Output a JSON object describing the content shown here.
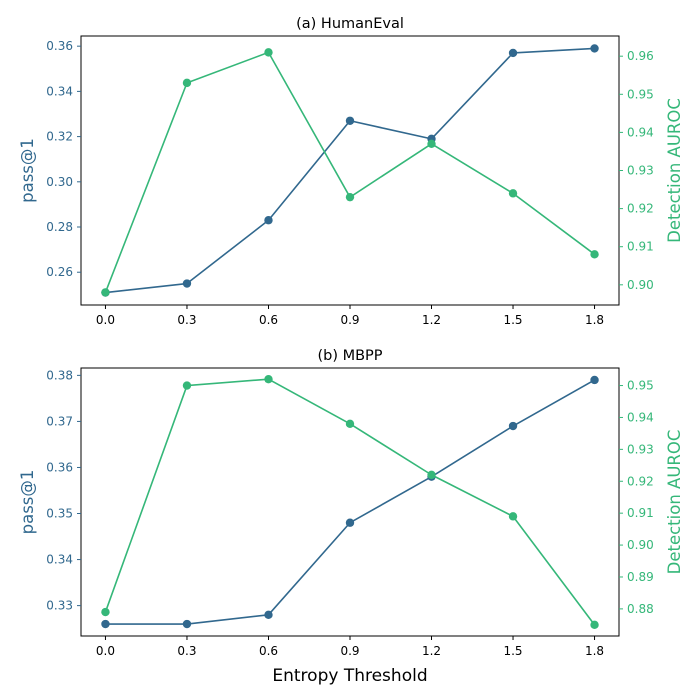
{
  "colors": {
    "pass": "#31688e",
    "auroc": "#35b779",
    "axis": "#000000"
  },
  "chart_data": [
    {
      "type": "line",
      "title": "(a) HumanEval",
      "xlabel": "",
      "x": [
        0.0,
        0.3,
        0.6,
        0.9,
        1.2,
        1.5,
        1.8
      ],
      "x_tick_labels": [
        "0.0",
        "0.3",
        "0.6",
        "0.9",
        "1.2",
        "1.5",
        "1.8"
      ],
      "xlim": [
        -0.09,
        1.89
      ],
      "ylabel_left": "pass@1",
      "ylabel_right": "Detection AUROC",
      "ylim_left": [
        0.2455,
        0.3645
      ],
      "yticks_left": [
        0.26,
        0.28,
        0.3,
        0.32,
        0.34,
        0.36
      ],
      "ytick_labels_left": [
        "0.26",
        "0.28",
        "0.30",
        "0.32",
        "0.34",
        "0.36"
      ],
      "ylim_right": [
        0.8947,
        0.9653
      ],
      "yticks_right": [
        0.9,
        0.91,
        0.92,
        0.93,
        0.94,
        0.95,
        0.96
      ],
      "ytick_labels_right": [
        "0.90",
        "0.91",
        "0.92",
        "0.93",
        "0.94",
        "0.95",
        "0.96"
      ],
      "series": [
        {
          "axis": "left",
          "color_key": "pass",
          "values": [
            0.251,
            0.255,
            0.283,
            0.327,
            0.319,
            0.357,
            0.359
          ]
        },
        {
          "axis": "right",
          "color_key": "auroc",
          "values": [
            0.898,
            0.953,
            0.961,
            0.923,
            0.937,
            0.924,
            0.908
          ]
        }
      ]
    },
    {
      "type": "line",
      "title": "(b) MBPP",
      "xlabel": "Entropy Threshold",
      "x": [
        0.0,
        0.3,
        0.6,
        0.9,
        1.2,
        1.5,
        1.8
      ],
      "x_tick_labels": [
        "0.0",
        "0.3",
        "0.6",
        "0.9",
        "1.2",
        "1.5",
        "1.8"
      ],
      "xlim": [
        -0.09,
        1.89
      ],
      "ylabel_left": "pass@1",
      "ylabel_right": "Detection AUROC",
      "ylim_left": [
        0.3234,
        0.3816
      ],
      "yticks_left": [
        0.33,
        0.34,
        0.35,
        0.36,
        0.37,
        0.38
      ],
      "ytick_labels_left": [
        "0.33",
        "0.34",
        "0.35",
        "0.36",
        "0.37",
        "0.38"
      ],
      "ylim_right": [
        0.8715,
        0.9555
      ],
      "yticks_right": [
        0.88,
        0.89,
        0.9,
        0.91,
        0.92,
        0.93,
        0.94,
        0.95
      ],
      "ytick_labels_right": [
        "0.88",
        "0.89",
        "0.90",
        "0.91",
        "0.92",
        "0.93",
        "0.94",
        "0.95"
      ],
      "series": [
        {
          "axis": "left",
          "color_key": "pass",
          "values": [
            0.326,
            0.326,
            0.328,
            0.348,
            0.358,
            0.369,
            0.379
          ]
        },
        {
          "axis": "right",
          "color_key": "auroc",
          "values": [
            0.879,
            0.95,
            0.952,
            0.938,
            0.922,
            0.909,
            0.875
          ]
        }
      ]
    }
  ]
}
